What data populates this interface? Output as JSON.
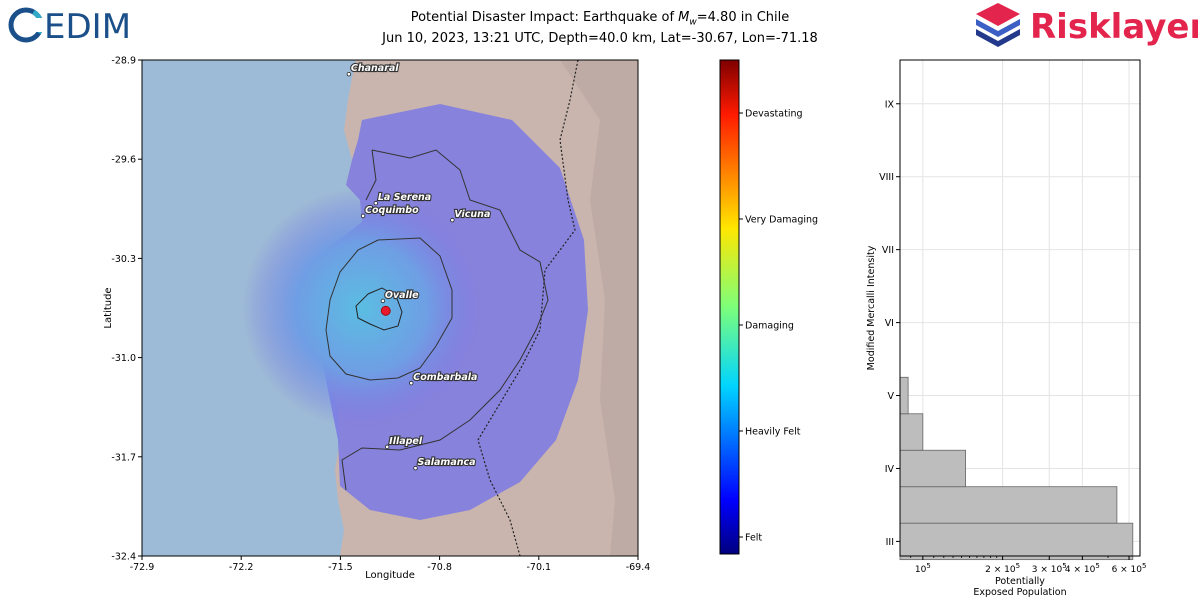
{
  "logos": {
    "cedim_text": "EDIM",
    "risklayer_text": "Risklayer"
  },
  "title": {
    "line1_prefix": "Potential Disaster Impact: Earthquake of ",
    "line1_symbol": "M",
    "line1_subscript": "w",
    "line1_suffix": "=4.80 in Chile",
    "line2": "Jun 10, 2023, 13:21 UTC, Depth=40.0 km, Lat=-30.67, Lon=-71.18"
  },
  "colors": {
    "ocean": "#9dbbd6",
    "land": "#c9b5ae",
    "affected": "#7b79e4",
    "marker": "#e8192c",
    "bar_fill": "#bdbdbd",
    "cedim_blue": "#1a4f8a",
    "risk_red": "#e3244c",
    "risk_navy": "#233a8c"
  },
  "chart_data": [
    {
      "type": "map",
      "xlabel": "Longitude",
      "ylabel": "Latitude",
      "xlim": [
        -72.9,
        -69.4
      ],
      "ylim": [
        -32.4,
        -28.9
      ],
      "xticks": [
        "-72.9",
        "-72.2",
        "-71.5",
        "-70.8",
        "-70.1",
        "-69.4"
      ],
      "yticks": [
        "-28.9",
        "-29.6",
        "-30.3",
        "-31.0",
        "-31.7",
        "-32.4"
      ],
      "epicenter": {
        "lon": -71.18,
        "lat": -30.67
      },
      "cities": [
        {
          "name": "Chanaral",
          "lon": -71.44,
          "lat": -29.0
        },
        {
          "name": "La Serena",
          "lon": -71.25,
          "lat": -29.91
        },
        {
          "name": "Coquimbo",
          "lon": -71.34,
          "lat": -30.0
        },
        {
          "name": "Vicuna",
          "lon": -70.71,
          "lat": -30.03
        },
        {
          "name": "Ovalle",
          "lon": -71.2,
          "lat": -30.6
        },
        {
          "name": "Combarbala",
          "lon": -71.0,
          "lat": -31.18
        },
        {
          "name": "Illapel",
          "lon": -71.17,
          "lat": -31.63
        },
        {
          "name": "Salamanca",
          "lon": -70.97,
          "lat": -31.78
        }
      ]
    },
    {
      "type": "colorbar",
      "labels": [
        "Devastating",
        "Very Damaging",
        "Damaging",
        "Heavily Felt",
        "Felt"
      ],
      "stops": [
        "#00007f",
        "#0000ff",
        "#007fff",
        "#00ffff",
        "#7fff7f",
        "#ffff00",
        "#ff7f00",
        "#ff0000",
        "#7f0000"
      ]
    },
    {
      "type": "bar",
      "orientation": "horizontal",
      "xlabel": "Potentially\nExposed Population",
      "ylabel": "Modified Mercalli Intensity",
      "xscale": "log",
      "xlim": [
        82000,
        660000
      ],
      "xticks": [
        {
          "value": 100000,
          "base": "10",
          "exp": "5"
        },
        {
          "value": 200000,
          "base": "2 × 10",
          "exp": "5"
        },
        {
          "value": 300000,
          "base": "3 × 10",
          "exp": "5"
        },
        {
          "value": 400000,
          "base": "4 × 10",
          "exp": "5"
        },
        {
          "value": 600000,
          "base": "6 × 10",
          "exp": "5"
        }
      ],
      "categories": [
        "III",
        "",
        "IV",
        "",
        "V",
        "",
        "VI",
        "",
        "VII",
        "",
        "VIII",
        "",
        "IX"
      ],
      "bars": [
        {
          "mmi": 3.0,
          "value": 620000
        },
        {
          "mmi": 3.5,
          "value": 540000
        },
        {
          "mmi": 4.0,
          "value": 145000
        },
        {
          "mmi": 4.5,
          "value": 100000
        },
        {
          "mmi": 5.0,
          "value": 88000
        }
      ]
    }
  ]
}
